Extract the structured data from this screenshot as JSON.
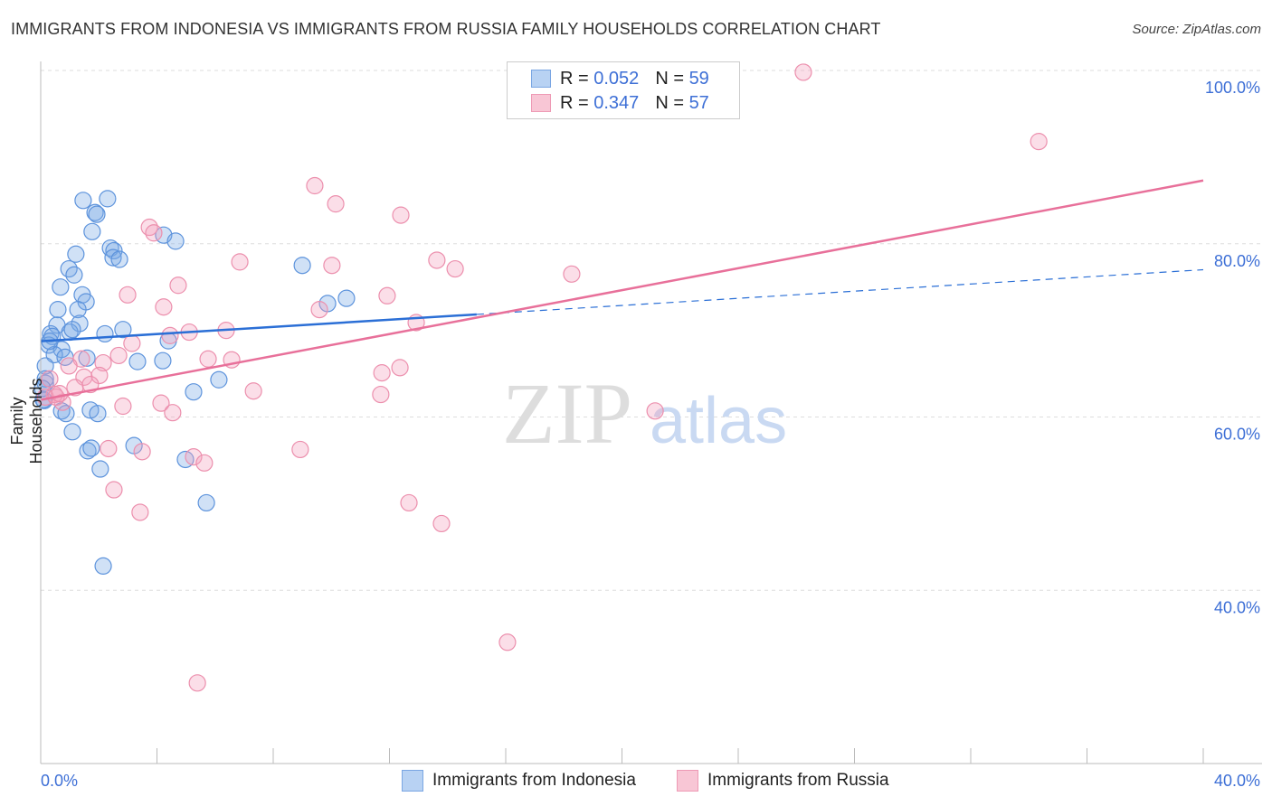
{
  "title": "IMMIGRANTS FROM INDONESIA VS IMMIGRANTS FROM RUSSIA FAMILY HOUSEHOLDS CORRELATION CHART",
  "source": "Source: ZipAtlas.com",
  "watermark": "ZIPatlas",
  "colors": {
    "indonesia": "#6d9fe0",
    "russia": "#ee8fae",
    "indonesia_line": "#2b6fd6",
    "russia_line": "#e8709a",
    "axis_text": "#3d6fd6"
  },
  "legend": {
    "rows": [
      {
        "r_label": "R =",
        "r": "0.052",
        "n_label": "N =",
        "n": "59"
      },
      {
        "r_label": "R =",
        "r": "0.347",
        "n_label": "N =",
        "n": "57"
      }
    ]
  },
  "chart_data": {
    "type": "scatter",
    "title": "IMMIGRANTS FROM INDONESIA VS IMMIGRANTS FROM RUSSIA FAMILY HOUSEHOLDS CORRELATION CHART",
    "xlabel": "",
    "ylabel": "Family Households",
    "xlim": [
      0,
      40
    ],
    "ylim": [
      20,
      100
    ],
    "x_tick_labels": [
      "0.0%",
      "40.0%"
    ],
    "y_ticks": [
      100,
      80,
      60,
      40
    ],
    "y_tick_labels": [
      "100.0%",
      "80.0%",
      "60.0%",
      "40.0%"
    ],
    "grid": true,
    "legend_position": "bottom",
    "series": [
      {
        "name": "Immigrants from Indonesia",
        "trend": {
          "x0": 0,
          "y0": 68.75,
          "x_solid_end": 15,
          "x1": 40,
          "y1": 77.0
        },
        "points": [
          [
            1.46,
            85.0
          ],
          [
            2.3,
            85.2
          ],
          [
            1.87,
            83.6
          ],
          [
            1.93,
            83.4
          ],
          [
            1.77,
            81.4
          ],
          [
            2.4,
            79.5
          ],
          [
            2.52,
            79.2
          ],
          [
            2.49,
            78.4
          ],
          [
            2.71,
            78.2
          ],
          [
            4.23,
            81.0
          ],
          [
            4.64,
            80.3
          ],
          [
            1.21,
            78.8
          ],
          [
            0.97,
            77.1
          ],
          [
            1.15,
            76.4
          ],
          [
            0.68,
            75.0
          ],
          [
            1.43,
            74.1
          ],
          [
            1.56,
            73.3
          ],
          [
            0.59,
            72.4
          ],
          [
            1.28,
            72.4
          ],
          [
            0.56,
            70.6
          ],
          [
            1.34,
            70.8
          ],
          [
            1.0,
            69.8
          ],
          [
            1.09,
            70.1
          ],
          [
            0.34,
            69.6
          ],
          [
            0.4,
            69.3
          ],
          [
            0.28,
            68.3
          ],
          [
            0.72,
            67.8
          ],
          [
            0.47,
            67.2
          ],
          [
            0.84,
            66.9
          ],
          [
            1.59,
            66.8
          ],
          [
            2.21,
            69.6
          ],
          [
            2.83,
            70.1
          ],
          [
            4.39,
            68.8
          ],
          [
            3.33,
            66.4
          ],
          [
            4.2,
            66.5
          ],
          [
            6.13,
            64.3
          ],
          [
            5.26,
            62.9
          ],
          [
            9.0,
            77.5
          ],
          [
            9.87,
            73.1
          ],
          [
            10.52,
            73.7
          ],
          [
            0.16,
            65.9
          ],
          [
            0.16,
            63.9
          ],
          [
            0.12,
            61.9
          ],
          [
            0.72,
            60.7
          ],
          [
            0.87,
            60.4
          ],
          [
            1.71,
            60.8
          ],
          [
            1.96,
            60.4
          ],
          [
            1.09,
            58.3
          ],
          [
            1.62,
            56.1
          ],
          [
            1.74,
            56.4
          ],
          [
            3.21,
            56.7
          ],
          [
            2.05,
            54.0
          ],
          [
            4.98,
            55.1
          ],
          [
            5.7,
            50.1
          ],
          [
            2.15,
            42.8
          ],
          [
            0.16,
            64.4
          ],
          [
            0.09,
            62.0
          ],
          [
            0.31,
            68.75
          ],
          [
            0.06,
            63.3
          ]
        ]
      },
      {
        "name": "Immigrants from Russia",
        "trend": {
          "x0": 0,
          "y0": 61.98,
          "x1": 40,
          "y1": 87.3
        },
        "points": [
          [
            26.24,
            99.8
          ],
          [
            34.34,
            91.8
          ],
          [
            9.43,
            86.7
          ],
          [
            10.15,
            84.6
          ],
          [
            12.39,
            83.3
          ],
          [
            3.74,
            81.9
          ],
          [
            3.89,
            81.25
          ],
          [
            6.85,
            77.9
          ],
          [
            10.02,
            77.5
          ],
          [
            13.63,
            78.1
          ],
          [
            14.26,
            77.1
          ],
          [
            18.27,
            76.5
          ],
          [
            2.99,
            74.1
          ],
          [
            4.73,
            75.2
          ],
          [
            4.23,
            72.7
          ],
          [
            9.59,
            72.4
          ],
          [
            11.92,
            74.0
          ],
          [
            12.92,
            70.9
          ],
          [
            5.11,
            69.8
          ],
          [
            6.38,
            70.0
          ],
          [
            4.45,
            69.4
          ],
          [
            3.14,
            68.5
          ],
          [
            5.76,
            66.7
          ],
          [
            6.57,
            66.6
          ],
          [
            2.68,
            67.1
          ],
          [
            2.15,
            66.25
          ],
          [
            1.4,
            66.7
          ],
          [
            0.97,
            65.9
          ],
          [
            2.02,
            64.8
          ],
          [
            1.49,
            64.6
          ],
          [
            1.71,
            63.75
          ],
          [
            1.18,
            63.4
          ],
          [
            11.74,
            65.1
          ],
          [
            12.36,
            65.7
          ],
          [
            7.32,
            63.0
          ],
          [
            11.7,
            62.6
          ],
          [
            4.14,
            61.6
          ],
          [
            2.83,
            61.25
          ],
          [
            4.54,
            60.5
          ],
          [
            0.75,
            61.7
          ],
          [
            0.47,
            62.6
          ],
          [
            0.31,
            64.4
          ],
          [
            0.16,
            62.3
          ],
          [
            21.14,
            60.7
          ],
          [
            2.33,
            56.35
          ],
          [
            3.49,
            56.0
          ],
          [
            5.26,
            55.4
          ],
          [
            5.63,
            54.7
          ],
          [
            8.93,
            56.25
          ],
          [
            2.52,
            51.6
          ],
          [
            3.42,
            49.0
          ],
          [
            12.67,
            50.1
          ],
          [
            13.79,
            47.7
          ],
          [
            16.06,
            34.0
          ],
          [
            5.39,
            29.3
          ],
          [
            0.53,
            62.3
          ],
          [
            0.65,
            62.7
          ]
        ]
      }
    ]
  }
}
